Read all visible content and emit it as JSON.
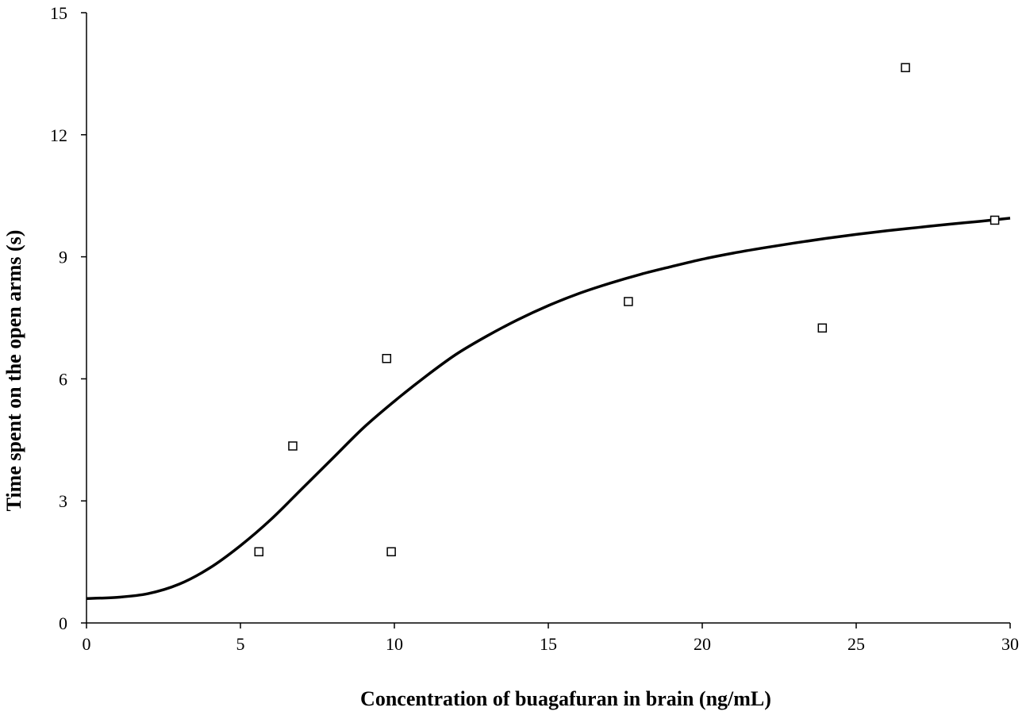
{
  "chart_data": {
    "type": "scatter",
    "title": "",
    "xlabel": "Concentration of buagafuran in brain (ng/mL)",
    "ylabel": "Time spent on the open arms (s)",
    "xlim": [
      0,
      30
    ],
    "ylim": [
      0,
      15
    ],
    "xticks": [
      0,
      5,
      10,
      15,
      20,
      25,
      30
    ],
    "yticks": [
      0,
      3,
      6,
      9,
      12,
      15
    ],
    "xtick_labels": [
      "0",
      "5",
      "10",
      "15",
      "20",
      "25",
      "30"
    ],
    "ytick_labels": [
      "0",
      "3",
      "6",
      "9",
      "12",
      "15"
    ],
    "grid": false,
    "legend": "none",
    "series": [
      {
        "kind": "points",
        "marker": "open-square",
        "points": [
          {
            "x": 5.6,
            "y": 1.75
          },
          {
            "x": 6.7,
            "y": 4.35
          },
          {
            "x": 9.75,
            "y": 6.5
          },
          {
            "x": 9.9,
            "y": 1.75
          },
          {
            "x": 17.6,
            "y": 7.9
          },
          {
            "x": 23.9,
            "y": 7.25
          },
          {
            "x": 26.6,
            "y": 13.65
          },
          {
            "x": 29.5,
            "y": 9.9
          }
        ]
      },
      {
        "kind": "fitted-curve",
        "points": [
          {
            "x": 0,
            "y": 0.6
          },
          {
            "x": 1,
            "y": 0.63
          },
          {
            "x": 2,
            "y": 0.72
          },
          {
            "x": 3,
            "y": 0.95
          },
          {
            "x": 4,
            "y": 1.35
          },
          {
            "x": 5,
            "y": 1.9
          },
          {
            "x": 6,
            "y": 2.55
          },
          {
            "x": 7,
            "y": 3.3
          },
          {
            "x": 8,
            "y": 4.05
          },
          {
            "x": 9,
            "y": 4.8
          },
          {
            "x": 10,
            "y": 5.45
          },
          {
            "x": 11,
            "y": 6.05
          },
          {
            "x": 12,
            "y": 6.6
          },
          {
            "x": 13,
            "y": 7.05
          },
          {
            "x": 14,
            "y": 7.45
          },
          {
            "x": 15,
            "y": 7.8
          },
          {
            "x": 16,
            "y": 8.1
          },
          {
            "x": 17,
            "y": 8.35
          },
          {
            "x": 18,
            "y": 8.57
          },
          {
            "x": 19,
            "y": 8.76
          },
          {
            "x": 20,
            "y": 8.94
          },
          {
            "x": 21,
            "y": 9.09
          },
          {
            "x": 22,
            "y": 9.22
          },
          {
            "x": 23,
            "y": 9.34
          },
          {
            "x": 24,
            "y": 9.45
          },
          {
            "x": 25,
            "y": 9.55
          },
          {
            "x": 26,
            "y": 9.64
          },
          {
            "x": 27,
            "y": 9.72
          },
          {
            "x": 28,
            "y": 9.8
          },
          {
            "x": 29,
            "y": 9.87
          },
          {
            "x": 30,
            "y": 9.95
          }
        ]
      }
    ]
  }
}
